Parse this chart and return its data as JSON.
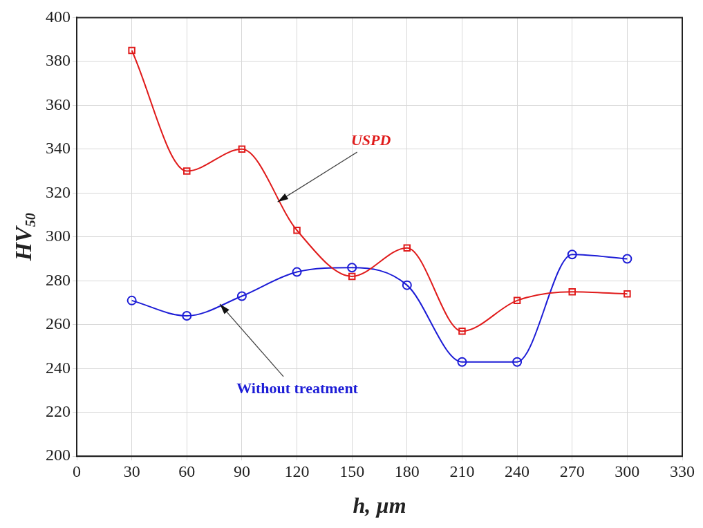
{
  "chart_data": {
    "type": "line",
    "xlabel": "h, µm",
    "ylabel": "HV$_{50}$",
    "x": [
      30,
      60,
      90,
      120,
      150,
      180,
      210,
      240,
      270,
      300
    ],
    "series": [
      {
        "name": "USPD",
        "color": "#e01b1b",
        "marker": "square",
        "values": [
          385,
          330,
          340,
          303,
          282,
          295,
          257,
          271,
          275,
          274
        ]
      },
      {
        "name": "Without treatment",
        "color": "#1c1cd6",
        "marker": "circle",
        "values": [
          271,
          264,
          273,
          284,
          286,
          278,
          243,
          243,
          292,
          290
        ]
      }
    ],
    "xlim": [
      0,
      330
    ],
    "xticks": [
      0,
      30,
      60,
      90,
      120,
      150,
      180,
      210,
      240,
      270,
      300,
      330
    ],
    "ylim": [
      200,
      400
    ],
    "yticks": [
      200,
      220,
      240,
      260,
      280,
      300,
      320,
      340,
      360,
      380,
      400
    ],
    "grid": true,
    "legend": false,
    "line_style": "solid"
  }
}
